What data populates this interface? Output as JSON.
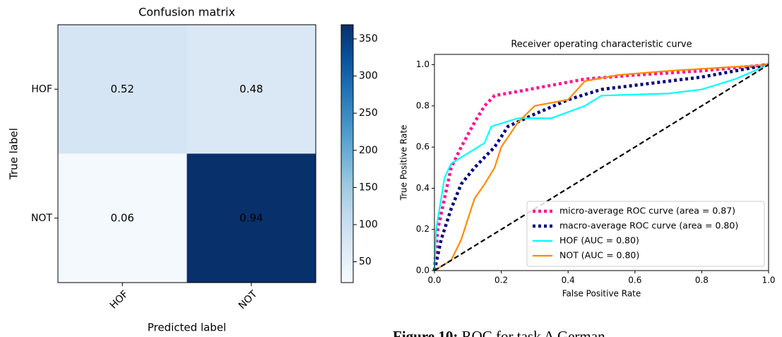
{
  "chart_data": [
    {
      "type": "heatmap",
      "title": "Confusion matrix",
      "x_label": "Predicted label",
      "y_label": "True label",
      "x_categories": [
        "HOF",
        "NOT"
      ],
      "y_categories": [
        "HOF",
        "NOT"
      ],
      "values": [
        [
          0.52,
          0.48
        ],
        [
          0.06,
          0.94
        ]
      ],
      "cell_colors": [
        [
          "#d5e5f4",
          "#dae8f5"
        ],
        [
          "#f4f9fe",
          "#08306b"
        ]
      ],
      "text_colors": [
        [
          "#ff0000",
          "#ff0000"
        ],
        [
          "#000000",
          "#ff0000"
        ]
      ],
      "colormap": [
        "#f7fbff",
        "#deebf7",
        "#c6dbef",
        "#9ecae1",
        "#6baed6",
        "#4292c6",
        "#2171b5",
        "#08519c",
        "#08306b"
      ],
      "colorbar_lim": [
        22,
        369
      ],
      "colorbar_ticks": [
        50,
        100,
        150,
        200,
        250,
        300,
        350
      ]
    },
    {
      "type": "line",
      "title": "Receiver operating characteristic curve",
      "x_label": "False Positive Rate",
      "y_label": "True Positive Rate",
      "xlim": [
        0,
        1
      ],
      "ylim": [
        0,
        1.05
      ],
      "xticks": [
        {
          "value": 0,
          "label": "0.0"
        },
        0.2,
        0.4,
        0.6,
        0.8,
        {
          "value": 1,
          "label": "1.0"
        }
      ],
      "yticks": [
        {
          "value": 0,
          "label": "0.0"
        },
        0.2,
        0.4,
        0.6,
        0.8,
        {
          "value": 1,
          "label": "1.0"
        }
      ],
      "legend": "lower right",
      "series": [
        {
          "name": "micro-average ROC curve (area = 0.87)",
          "color": "#ff1493",
          "linestyle": "dotted",
          "x": [
            0,
            0.01,
            0.03,
            0.05,
            0.08,
            0.12,
            0.15,
            0.18,
            0.25,
            0.35,
            0.45,
            0.6,
            0.8,
            1
          ],
          "values": [
            0,
            0.2,
            0.35,
            0.5,
            0.6,
            0.72,
            0.8,
            0.85,
            0.87,
            0.9,
            0.93,
            0.95,
            0.97,
            1
          ]
        },
        {
          "name": "macro-average ROC curve (area = 0.80)",
          "color": "#000080",
          "linestyle": "dotted",
          "x": [
            0,
            0.02,
            0.05,
            0.08,
            0.12,
            0.18,
            0.22,
            0.3,
            0.4,
            0.5,
            0.6,
            0.8,
            0.9,
            1
          ],
          "values": [
            0,
            0.15,
            0.3,
            0.42,
            0.5,
            0.6,
            0.7,
            0.76,
            0.83,
            0.88,
            0.9,
            0.94,
            0.97,
            1
          ]
        },
        {
          "name": "HOF (AUC = 0.80)",
          "color": "#00ffff",
          "linestyle": "solid",
          "x": [
            0,
            0.005,
            0.02,
            0.03,
            0.05,
            0.1,
            0.15,
            0.17,
            0.25,
            0.35,
            0.45,
            0.5,
            0.7,
            0.8,
            0.9,
            1
          ],
          "values": [
            0,
            0.2,
            0.35,
            0.45,
            0.52,
            0.57,
            0.62,
            0.7,
            0.74,
            0.74,
            0.8,
            0.85,
            0.86,
            0.88,
            0.93,
            1
          ]
        },
        {
          "name": "NOT (AUC = 0.80)",
          "color": "#ff8c00",
          "linestyle": "solid",
          "x": [
            0,
            0.05,
            0.08,
            0.1,
            0.12,
            0.15,
            0.18,
            0.2,
            0.25,
            0.3,
            0.4,
            0.45,
            0.55,
            0.7,
            1
          ],
          "values": [
            0,
            0.05,
            0.15,
            0.25,
            0.35,
            0.42,
            0.5,
            0.6,
            0.72,
            0.8,
            0.83,
            0.92,
            0.95,
            0.97,
            1
          ]
        },
        {
          "color": "#000000",
          "linestyle": "dashed",
          "x": [
            0,
            1
          ],
          "values": [
            0,
            1
          ]
        }
      ]
    }
  ],
  "caption": {
    "label": "Figure 10:",
    "text": "ROC for task A German"
  }
}
